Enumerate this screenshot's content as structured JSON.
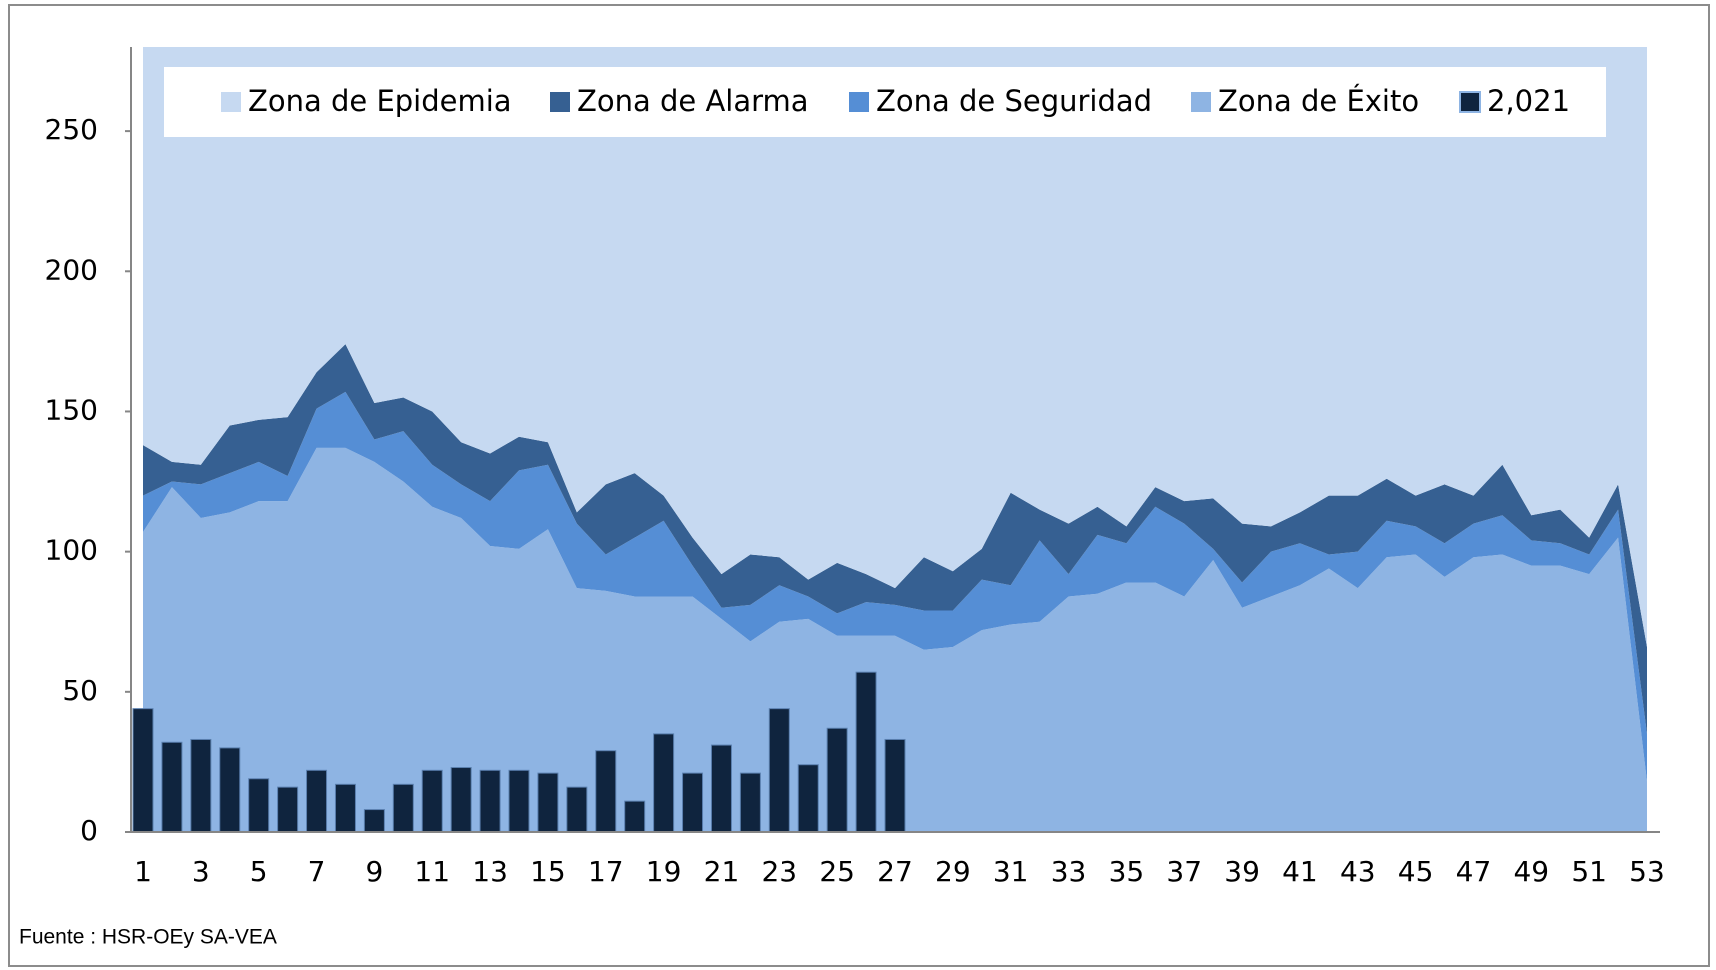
{
  "chart_data": {
    "type": "area",
    "source": "Fuente : HSR-OEy SA-VEA",
    "categories": [
      1,
      null,
      3,
      null,
      5,
      null,
      7,
      null,
      9,
      null,
      11,
      null,
      13,
      null,
      15,
      null,
      17,
      null,
      19,
      null,
      21,
      null,
      23,
      null,
      25,
      null,
      27,
      null,
      29,
      null,
      31,
      null,
      33,
      null,
      35,
      null,
      37,
      null,
      39,
      null,
      41,
      null,
      43,
      null,
      45,
      null,
      47,
      null,
      49,
      null,
      51,
      null,
      53
    ],
    "ylim": [
      0,
      280
    ],
    "yticks": [
      0,
      50,
      100,
      150,
      200,
      250
    ],
    "series": [
      {
        "name": "Zona de Epidemia",
        "color": "#c6d9f1",
        "stack": 3,
        "values": [
          142,
          148,
          149,
          135,
          133,
          132,
          116,
          106,
          127,
          125,
          130,
          141,
          145,
          139,
          141,
          166,
          156,
          152,
          160,
          175,
          188,
          181,
          182,
          190,
          184,
          188,
          193,
          182,
          187,
          179,
          159,
          165,
          170,
          164,
          171,
          157,
          162,
          161,
          170,
          171,
          166,
          160,
          160,
          154,
          160,
          156,
          160,
          149,
          167,
          165,
          175,
          156,
          214
        ]
      },
      {
        "name": "Zona de Alarma",
        "color": "#366092",
        "stack": 2,
        "values": [
          18,
          7,
          7,
          17,
          15,
          21,
          13,
          17,
          13,
          12,
          19,
          15,
          17,
          12,
          8,
          4,
          25,
          23,
          9,
          10,
          12,
          18,
          10,
          6,
          18,
          10,
          6,
          19,
          14,
          11,
          33,
          11,
          18,
          10,
          6,
          7,
          8,
          18,
          21,
          9,
          11,
          21,
          20,
          15,
          11,
          21,
          10,
          18,
          9,
          12,
          6,
          9,
          31
        ]
      },
      {
        "name": "Zona de Seguridad",
        "color": "#558ed5",
        "stack": 1,
        "values": [
          13,
          2,
          12,
          14,
          14,
          9,
          14,
          20,
          8,
          18,
          15,
          12,
          16,
          28,
          23,
          23,
          13,
          21,
          27,
          11,
          4,
          13,
          13,
          8,
          8,
          12,
          11,
          14,
          13,
          18,
          14,
          29,
          8,
          21,
          14,
          27,
          26,
          4,
          9,
          16,
          15,
          5,
          13,
          13,
          10,
          12,
          12,
          14,
          9,
          8,
          7,
          10,
          17
        ]
      },
      {
        "name": "Zona de Éxito",
        "color": "#8eb4e3",
        "stack": 0,
        "values": [
          107,
          123,
          112,
          114,
          118,
          118,
          137,
          137,
          132,
          125,
          116,
          112,
          102,
          101,
          108,
          87,
          86,
          84,
          84,
          84,
          76,
          68,
          75,
          76,
          70,
          70,
          70,
          65,
          66,
          72,
          74,
          75,
          84,
          85,
          89,
          89,
          84,
          97,
          80,
          84,
          88,
          94,
          87,
          98,
          99,
          91,
          98,
          99,
          95,
          95,
          92,
          105,
          18
        ]
      },
      {
        "name": "2,021",
        "color": "#0f243e",
        "type": "bar",
        "values": [
          44,
          32,
          33,
          30,
          19,
          16,
          22,
          17,
          8,
          17,
          22,
          23,
          22,
          22,
          21,
          16,
          29,
          11,
          35,
          21,
          31,
          21,
          44,
          24,
          37,
          57,
          33,
          null,
          null,
          null,
          null,
          null,
          null,
          null,
          null,
          null,
          null,
          null,
          null,
          null,
          null,
          null,
          null,
          null,
          null,
          null,
          null,
          null,
          null,
          null,
          null,
          null,
          null
        ]
      }
    ]
  }
}
